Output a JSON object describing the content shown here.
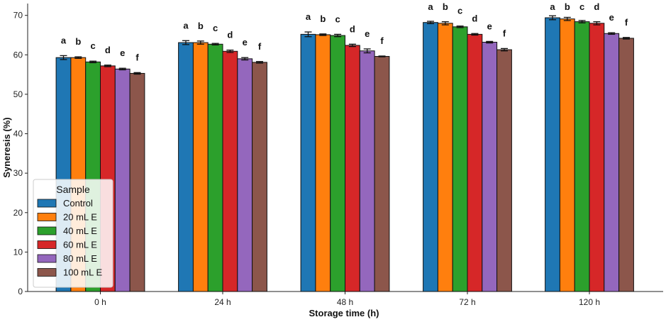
{
  "chart_data": {
    "type": "bar",
    "xlabel": "Storage time (h)",
    "ylabel": "Syneresis (%)",
    "ylim": [
      0,
      73
    ],
    "yticks": [
      0,
      10,
      20,
      30,
      40,
      50,
      60,
      70
    ],
    "categories": [
      "0 h",
      "24 h",
      "48 h",
      "72 h",
      "120 h"
    ],
    "legend": {
      "title": "Sample",
      "placement": "lower-left"
    },
    "series": [
      {
        "name": "Control",
        "color": "#1f77b4",
        "values": [
          59.3,
          63.1,
          65.2,
          68.2,
          69.4
        ],
        "errors": [
          0.5,
          0.5,
          0.6,
          0.3,
          0.5
        ],
        "letters": [
          "a",
          "a",
          "a",
          "a",
          "a"
        ]
      },
      {
        "name": "20 mL E",
        "color": "#ff7f0e",
        "values": [
          59.3,
          63.1,
          65.1,
          68.0,
          69.1
        ],
        "errors": [
          0.2,
          0.4,
          0.2,
          0.4,
          0.4
        ],
        "letters": [
          "b",
          "b",
          "b",
          "b",
          "b"
        ]
      },
      {
        "name": "40 mL E",
        "color": "#2ca02c",
        "values": [
          58.2,
          62.7,
          64.9,
          67.1,
          68.4
        ],
        "errors": [
          0.2,
          0.2,
          0.3,
          0.2,
          0.3
        ],
        "letters": [
          "c",
          "c",
          "c",
          "c",
          "c"
        ]
      },
      {
        "name": "60 mL E",
        "color": "#d62728",
        "values": [
          57.2,
          60.9,
          62.4,
          65.2,
          68.0
        ],
        "errors": [
          0.2,
          0.3,
          0.3,
          0.2,
          0.4
        ],
        "letters": [
          "d",
          "d",
          "d",
          "d",
          "d"
        ]
      },
      {
        "name": "80 mL E",
        "color": "#9467bd",
        "values": [
          56.4,
          59.0,
          61.0,
          63.2,
          65.4
        ],
        "errors": [
          0.2,
          0.3,
          0.5,
          0.2,
          0.2
        ],
        "letters": [
          "e",
          "e",
          "e",
          "e",
          "e"
        ]
      },
      {
        "name": "100 mL E",
        "color": "#8c564b",
        "values": [
          55.3,
          58.1,
          59.6,
          61.3,
          64.2
        ],
        "errors": [
          0.2,
          0.2,
          0.1,
          0.3,
          0.2
        ],
        "letters": [
          "f",
          "f",
          "f",
          "f",
          "f"
        ]
      }
    ]
  }
}
